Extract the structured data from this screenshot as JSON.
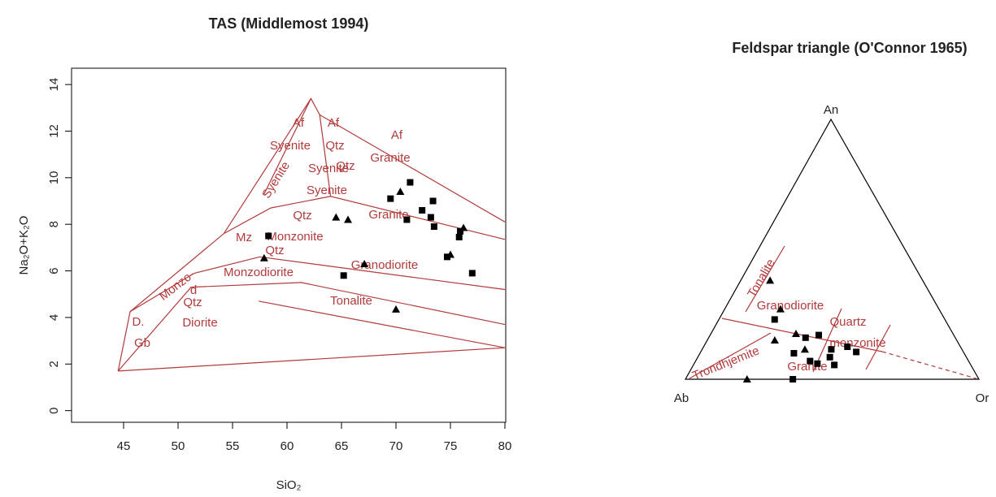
{
  "chart_data": [
    {
      "type": "scatter",
      "title": "TAS (Middlemost 1994)",
      "x_label": "SiO₂",
      "y_label": "Na₂O+K₂O",
      "xlim": [
        40,
        80
      ],
      "xticks": [
        45,
        50,
        55,
        60,
        65,
        70,
        75,
        80
      ],
      "ylim": [
        -0.5,
        14.7
      ],
      "yticks": [
        0,
        2,
        4,
        6,
        8,
        10,
        12,
        14
      ],
      "line_color": "#b23a3a",
      "boundaries": [
        {
          "x": [
            44.5,
            80
          ],
          "y": [
            1.7,
            2.7
          ]
        },
        {
          "x": [
            44.5,
            45.6,
            54.2,
            62.2,
            63,
            80
          ],
          "y": [
            1.7,
            4.25,
            7.6,
            13.4,
            12.7,
            8.1
          ]
        },
        {
          "x": [
            44.5,
            51.2,
            61.3,
            80
          ],
          "y": [
            1.7,
            5.3,
            5.5,
            3.7
          ]
        },
        {
          "x": [
            57.4,
            80
          ],
          "y": [
            4.7,
            2.7
          ]
        },
        {
          "x": [
            45.6,
            51.5,
            57.5,
            80
          ],
          "y": [
            4.25,
            5.9,
            6.6,
            5.2
          ]
        },
        {
          "x": [
            54.2,
            58.5,
            64,
            80
          ],
          "y": [
            7.6,
            8.7,
            9.2,
            7.35
          ]
        },
        {
          "x": [
            57.9,
            62.2
          ],
          "y": [
            9.3,
            13.4
          ]
        },
        {
          "x": [
            63,
            64
          ],
          "y": [
            12.7,
            9.2
          ]
        }
      ],
      "annotations": [
        "Af",
        "Syenite",
        "Af",
        "Qtz",
        "Syenite",
        "Qtz",
        "Syenite",
        "Syenite",
        "Af",
        "Granite",
        "Qtz",
        "Granite",
        "Mz",
        "Monzonite",
        "Qtz",
        "Monzo-",
        "Granodiorite",
        "Monzodiorite",
        "d",
        "Qtz",
        "Tonalite",
        "D.",
        "Gb",
        "Diorite"
      ],
      "series": [
        {
          "marker": "square",
          "color": "#000000",
          "x": [
            58.3,
            65.2,
            69.5,
            71.3,
            71.0,
            72.4,
            73.4,
            73.2,
            73.5,
            75.8,
            75.9,
            74.7,
            77.0
          ],
          "y": [
            7.5,
            5.8,
            9.1,
            9.8,
            8.2,
            8.6,
            9.0,
            8.3,
            7.9,
            7.45,
            7.7,
            6.6,
            5.9
          ]
        },
        {
          "marker": "triangle",
          "color": "#000000",
          "x": [
            57.9,
            64.5,
            65.6,
            67.1,
            70.4,
            70.0,
            75.0,
            76.2
          ],
          "y": [
            6.55,
            8.3,
            8.2,
            6.3,
            9.4,
            4.35,
            6.7,
            7.85
          ]
        }
      ]
    },
    {
      "type": "ternary",
      "title": "Feldspar triangle (O'Connor 1965)",
      "corners": {
        "top": "An",
        "left": "Ab",
        "right": "Or"
      },
      "line_color": "#b23a3a",
      "annotations": [
        "Tonalite",
        "Granodiorite",
        "Quartz",
        "monzonite",
        "Trondhjemite",
        "Granite"
      ],
      "series": [
        {
          "marker": "square",
          "color": "#000000",
          "an": [
            23,
            16,
            17,
            10,
            7,
            8.5,
            11.5,
            12.5,
            10.5,
            5.5,
            0,
            6
          ],
          "ab": [
            58,
            51,
            46,
            58,
            54,
            46.5,
            44.5,
            38.5,
            36.5,
            46.5,
            63.4,
            52
          ],
          "or": [
            19,
            33,
            37,
            32,
            39,
            45,
            44,
            49,
            53,
            48,
            36.6,
            42
          ]
        },
        {
          "marker": "triangle",
          "color": "#000000",
          "an": [
            38,
            27,
            15,
            17.5,
            11.5,
            0
          ],
          "ab": [
            52,
            54,
            62,
            53.5,
            53.5,
            79
          ],
          "or": [
            10,
            19,
            23,
            29,
            35,
            21
          ]
        }
      ]
    }
  ]
}
